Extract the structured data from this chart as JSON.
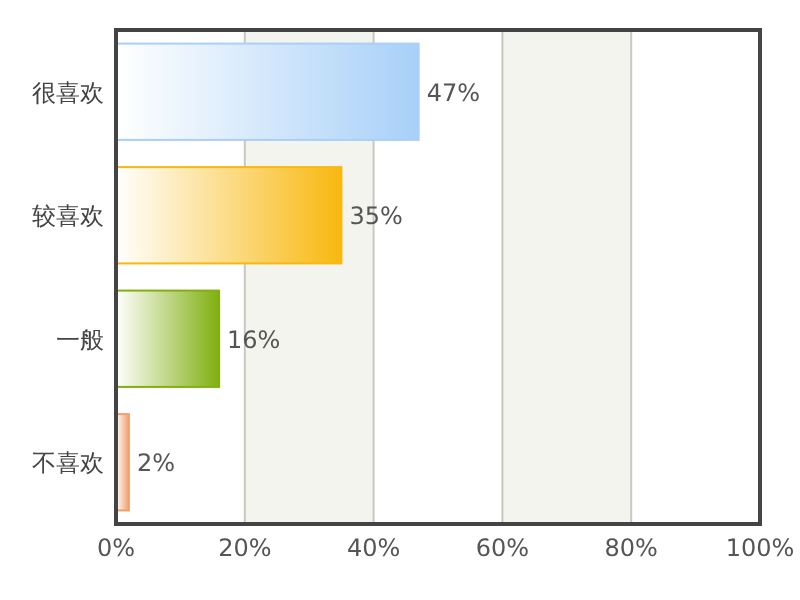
{
  "chart_data": {
    "type": "bar",
    "orientation": "horizontal",
    "categories": [
      "很喜欢",
      "较喜欢",
      "一般",
      "不喜欢"
    ],
    "values": [
      47,
      35,
      16,
      2
    ],
    "colors": [
      "#a8d0f8",
      "#f8b810",
      "#80b010",
      "#f0a070"
    ],
    "value_labels": [
      "47%",
      "35%",
      "16%",
      "2%"
    ],
    "xlim": [
      0,
      100
    ],
    "xticks": [
      {
        "value": 0,
        "label": "0%"
      },
      {
        "value": 20,
        "label": "20%"
      },
      {
        "value": 40,
        "label": "40%"
      },
      {
        "value": 60,
        "label": "60%"
      },
      {
        "value": 80,
        "label": "80%"
      },
      {
        "value": 100,
        "label": "100%"
      }
    ],
    "bands": [
      {
        "axis": "x",
        "from": 20,
        "to": 40,
        "color": "#f4f4ee"
      },
      {
        "axis": "x",
        "from": 60,
        "to": 80,
        "color": "#f4f4ee"
      }
    ],
    "grid": "x"
  }
}
